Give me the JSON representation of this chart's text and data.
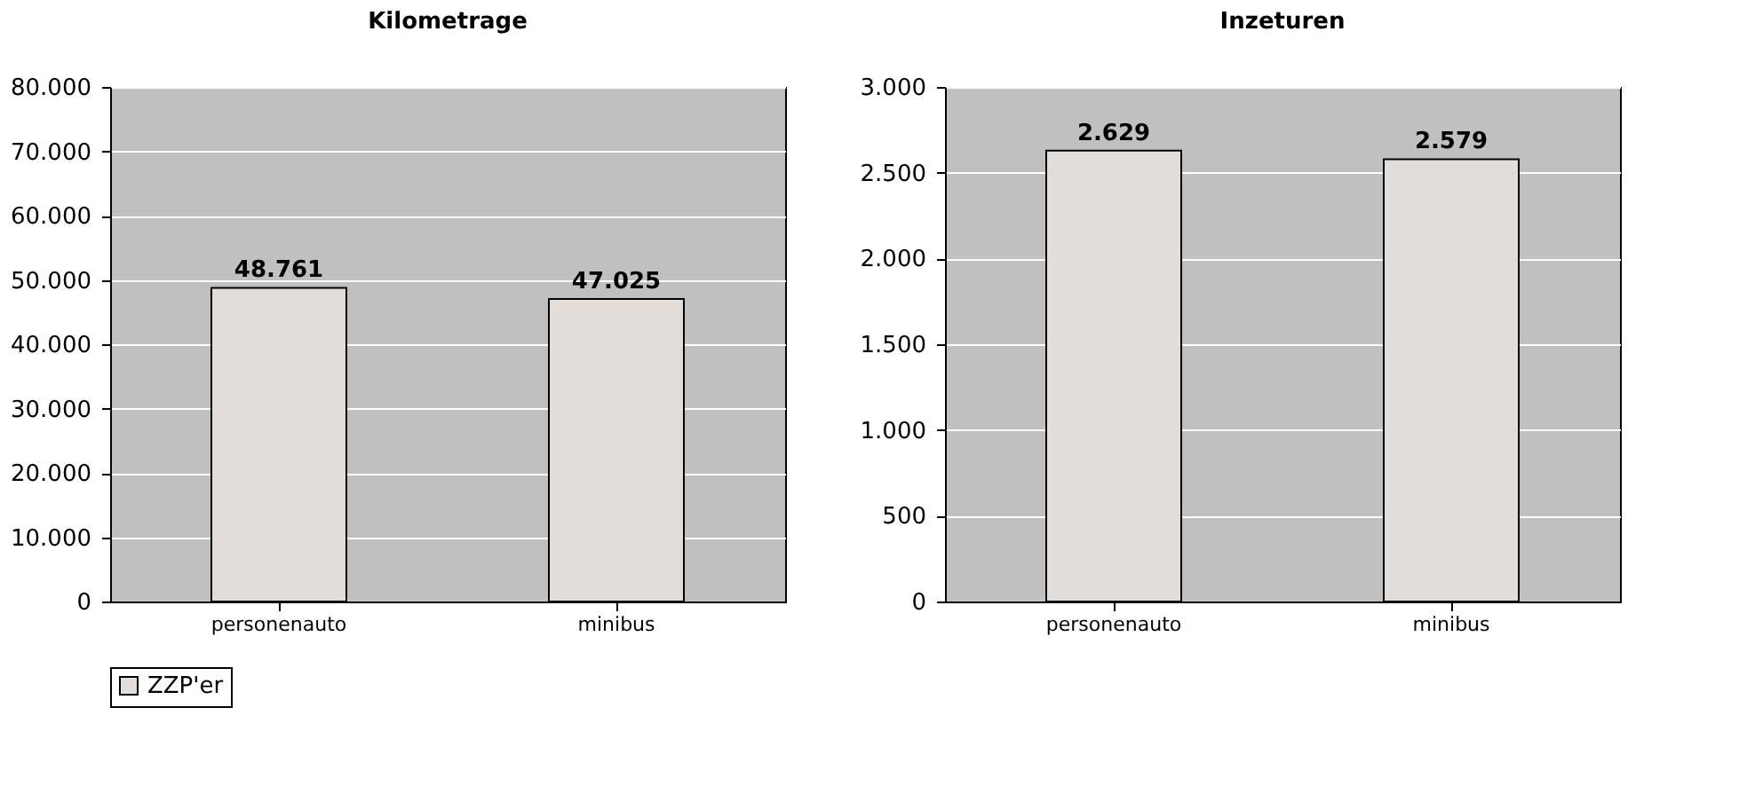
{
  "chart_data": [
    {
      "type": "bar",
      "title": "Kilometrage",
      "categories": [
        "personenauto",
        "minibus"
      ],
      "series": [
        {
          "name": "ZZP'er",
          "color": "#e3ddd9",
          "values": [
            48761,
            47025
          ],
          "value_labels": [
            "48.761",
            "47.025"
          ]
        }
      ],
      "ylim": [
        0,
        80000
      ],
      "yticks": [
        0,
        {
          "value": 10000,
          "label": "10.000"
        },
        {
          "value": 20000,
          "label": "20.000"
        },
        {
          "value": 30000,
          "label": "30.000"
        },
        {
          "value": 40000,
          "label": "40.000"
        },
        {
          "value": 50000,
          "label": "50.000"
        },
        {
          "value": 60000,
          "label": "60.000"
        },
        {
          "value": 70000,
          "label": "70.000"
        },
        {
          "value": 80000,
          "label": "80.000"
        }
      ],
      "grid": "y",
      "legend": "bottom"
    },
    {
      "type": "bar",
      "title": "Inzeturen",
      "categories": [
        "personenauto",
        "minibus"
      ],
      "series": [
        {
          "name": "ZZP'er",
          "color": "#e3ddd9",
          "values": [
            2629,
            2579
          ],
          "value_labels": [
            "2.629",
            "2.579"
          ]
        }
      ],
      "ylim": [
        0,
        3000
      ],
      "yticks": [
        0,
        500,
        {
          "value": 1000,
          "label": "1.000"
        },
        {
          "value": 1500,
          "label": "1.500"
        },
        {
          "value": 2000,
          "label": "2.000"
        },
        {
          "value": 2500,
          "label": "2.500"
        },
        {
          "value": 3000,
          "label": "3.000"
        }
      ],
      "grid": "y",
      "legend": "bottom"
    }
  ]
}
